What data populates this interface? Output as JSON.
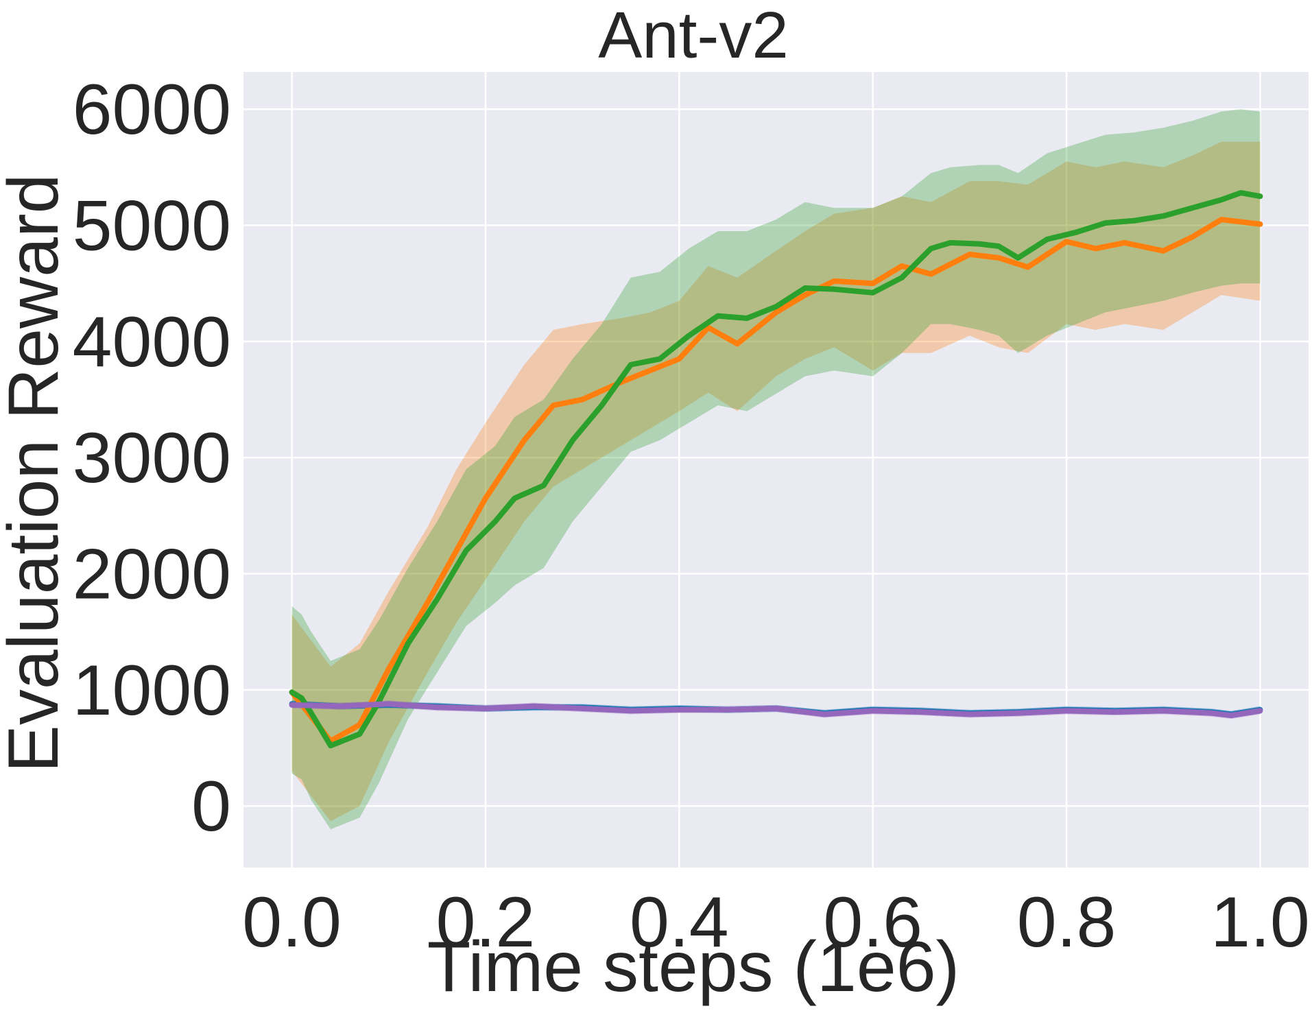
{
  "chart_data": {
    "type": "line",
    "title": "Ant-v2",
    "xlabel": "Time steps (1e6)",
    "ylabel": "Evaluation Reward",
    "xlim": [
      -0.05,
      1.05
    ],
    "ylim": [
      -530,
      6320
    ],
    "xticks": [
      0.0,
      0.2,
      0.4,
      0.6,
      0.8,
      1.0
    ],
    "xtick_labels": [
      "0.0",
      "0.2",
      "0.4",
      "0.6",
      "0.8",
      "1.0"
    ],
    "yticks": [
      0,
      1000,
      2000,
      3000,
      4000,
      5000,
      6000
    ],
    "ytick_labels": [
      "0",
      "1000",
      "2000",
      "3000",
      "4000",
      "5000",
      "6000"
    ],
    "grid": true,
    "background": "#eaeaf2",
    "series": [
      {
        "color": "#1f77b4",
        "x": [
          0.0,
          0.05,
          0.1,
          0.15,
          0.2,
          0.25,
          0.3,
          0.35,
          0.4,
          0.45,
          0.5,
          0.55,
          0.6,
          0.65,
          0.7,
          0.75,
          0.8,
          0.85,
          0.9,
          0.95,
          0.97,
          1.0
        ],
        "mean": [
          880,
          860,
          870,
          860,
          840,
          850,
          850,
          830,
          840,
          830,
          840,
          800,
          830,
          820,
          800,
          810,
          830,
          820,
          830,
          810,
          790,
          830
        ],
        "lower": [
          850,
          830,
          840,
          830,
          810,
          820,
          820,
          800,
          810,
          800,
          810,
          770,
          800,
          790,
          770,
          780,
          800,
          790,
          800,
          780,
          760,
          800
        ],
        "upper": [
          910,
          890,
          900,
          890,
          870,
          880,
          880,
          860,
          870,
          860,
          870,
          830,
          860,
          850,
          830,
          840,
          860,
          850,
          860,
          840,
          820,
          860
        ]
      },
      {
        "color": "#ff7f0e",
        "x": [
          0.0,
          0.04,
          0.07,
          0.1,
          0.14,
          0.17,
          0.2,
          0.24,
          0.27,
          0.3,
          0.34,
          0.37,
          0.4,
          0.43,
          0.46,
          0.5,
          0.53,
          0.56,
          0.6,
          0.63,
          0.66,
          0.7,
          0.73,
          0.76,
          0.8,
          0.83,
          0.86,
          0.9,
          0.93,
          0.96,
          1.0
        ],
        "mean": [
          980,
          560,
          700,
          1180,
          1750,
          2200,
          2650,
          3150,
          3450,
          3500,
          3650,
          3750,
          3850,
          4120,
          3980,
          4250,
          4400,
          4520,
          4500,
          4650,
          4580,
          4750,
          4720,
          4640,
          4860,
          4800,
          4850,
          4780,
          4900,
          5050,
          5010
        ],
        "lower": [
          300,
          -130,
          0,
          550,
          1150,
          1580,
          1950,
          2450,
          2750,
          2900,
          3100,
          3250,
          3400,
          3560,
          3400,
          3700,
          3850,
          3950,
          3750,
          3900,
          3900,
          4050,
          3950,
          3900,
          4150,
          4100,
          4150,
          4100,
          4250,
          4400,
          4350
        ],
        "upper": [
          1650,
          1200,
          1400,
          1850,
          2400,
          2900,
          3300,
          3800,
          4100,
          4150,
          4200,
          4250,
          4350,
          4650,
          4550,
          4780,
          4950,
          5100,
          5150,
          5250,
          5200,
          5380,
          5380,
          5350,
          5550,
          5500,
          5550,
          5500,
          5600,
          5720,
          5720
        ]
      },
      {
        "color": "#2ca02c",
        "x": [
          0.0,
          0.01,
          0.02,
          0.04,
          0.07,
          0.09,
          0.12,
          0.15,
          0.18,
          0.21,
          0.23,
          0.26,
          0.29,
          0.32,
          0.35,
          0.38,
          0.41,
          0.44,
          0.47,
          0.5,
          0.53,
          0.56,
          0.6,
          0.63,
          0.66,
          0.68,
          0.71,
          0.73,
          0.75,
          0.78,
          0.81,
          0.84,
          0.87,
          0.9,
          0.93,
          0.96,
          0.98,
          1.0
        ],
        "mean": [
          980,
          930,
          800,
          520,
          620,
          900,
          1400,
          1780,
          2200,
          2450,
          2650,
          2760,
          3150,
          3450,
          3800,
          3850,
          4050,
          4220,
          4200,
          4300,
          4460,
          4450,
          4420,
          4550,
          4800,
          4850,
          4840,
          4820,
          4720,
          4880,
          4940,
          5020,
          5040,
          5080,
          5150,
          5220,
          5280,
          5250
        ],
        "lower": [
          280,
          230,
          50,
          -200,
          -100,
          200,
          750,
          1150,
          1550,
          1750,
          1900,
          2050,
          2450,
          2750,
          3050,
          3150,
          3300,
          3450,
          3400,
          3550,
          3700,
          3750,
          3700,
          3900,
          4150,
          4150,
          4100,
          4050,
          3900,
          4050,
          4150,
          4250,
          4300,
          4350,
          4420,
          4480,
          4500,
          4500
        ],
        "upper": [
          1720,
          1650,
          1500,
          1250,
          1350,
          1600,
          2050,
          2450,
          2900,
          3100,
          3350,
          3500,
          3850,
          4150,
          4550,
          4600,
          4800,
          4950,
          4950,
          5050,
          5200,
          5150,
          5150,
          5250,
          5450,
          5500,
          5520,
          5520,
          5450,
          5620,
          5700,
          5780,
          5800,
          5840,
          5900,
          5980,
          6000,
          5980
        ]
      },
      {
        "color": "#9467bd",
        "x": [
          0.0,
          0.05,
          0.1,
          0.15,
          0.2,
          0.25,
          0.3,
          0.35,
          0.4,
          0.45,
          0.5,
          0.55,
          0.6,
          0.65,
          0.7,
          0.75,
          0.8,
          0.85,
          0.9,
          0.95,
          0.97,
          1.0
        ],
        "mean": [
          870,
          860,
          880,
          850,
          840,
          860,
          840,
          820,
          830,
          830,
          840,
          790,
          820,
          810,
          790,
          800,
          820,
          810,
          820,
          800,
          780,
          820
        ],
        "lower": [
          840,
          830,
          850,
          820,
          810,
          830,
          810,
          790,
          800,
          800,
          810,
          760,
          790,
          780,
          760,
          770,
          790,
          780,
          790,
          770,
          750,
          790
        ],
        "upper": [
          900,
          890,
          910,
          880,
          870,
          890,
          870,
          850,
          860,
          860,
          870,
          820,
          850,
          840,
          820,
          830,
          850,
          840,
          850,
          830,
          810,
          850
        ]
      }
    ]
  }
}
